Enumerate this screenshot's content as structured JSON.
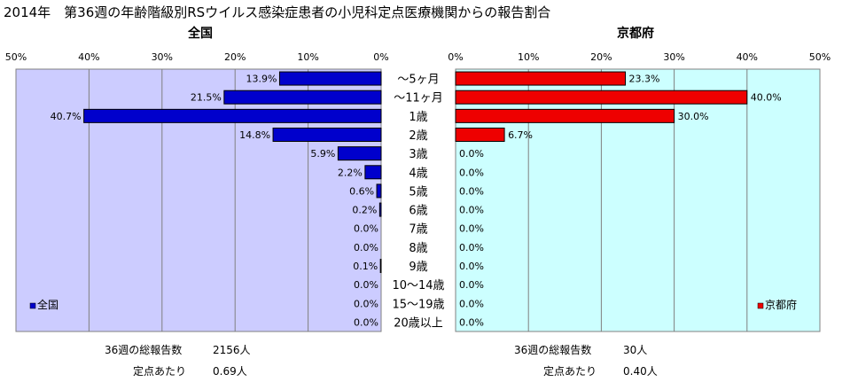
{
  "title": "2014年　第36週の年齢階級別RSウイルス感染症患者の小児科定点医療機関からの報告割合",
  "chart_data": {
    "type": "bar",
    "categories": [
      "〜5ヶ月",
      "〜11ヶ月",
      "1歳",
      "2歳",
      "3歳",
      "4歳",
      "5歳",
      "6歳",
      "7歳",
      "8歳",
      "9歳",
      "10〜14歳",
      "15〜19歳",
      "20歳以上"
    ],
    "xlim": [
      0,
      50
    ],
    "tick_labels": [
      "0%",
      "10%",
      "20%",
      "30%",
      "40%",
      "50%"
    ],
    "grid": true,
    "panels": [
      {
        "title": "全国",
        "direction": "reversed",
        "color": "#0000cc",
        "plot_bg": "#ccccff",
        "legend": "全国",
        "legend_position": "bottom-left",
        "values": [
          13.9,
          21.5,
          40.7,
          14.8,
          5.9,
          2.2,
          0.6,
          0.2,
          0.0,
          0.0,
          0.1,
          0.0,
          0.0,
          0.0
        ],
        "data_labels": [
          "13.9%",
          "21.5%",
          "40.7%",
          "14.8%",
          "5.9%",
          "2.2%",
          "0.6%",
          "0.2%",
          "0.0%",
          "0.0%",
          "0.1%",
          "0.0%",
          "0.0%",
          "0.0%"
        ]
      },
      {
        "title": "京都府",
        "direction": "normal",
        "color": "#ee0000",
        "plot_bg": "#ccffff",
        "legend": "京都府",
        "legend_position": "bottom-right",
        "values": [
          23.3,
          40.0,
          30.0,
          6.7,
          0.0,
          0.0,
          0.0,
          0.0,
          0.0,
          0.0,
          0.0,
          0.0,
          0.0,
          0.0
        ],
        "data_labels": [
          "23.3%",
          "40.0%",
          "30.0%",
          "6.7%",
          "0.0%",
          "0.0%",
          "0.0%",
          "0.0%",
          "0.0%",
          "0.0%",
          "0.0%",
          "0.0%",
          "0.0%",
          "0.0%"
        ]
      }
    ]
  },
  "footer": {
    "national": {
      "total_label": "36週の総報告数",
      "total_value": "2156人",
      "per_label": "定点あたり",
      "per_value": "0.69人"
    },
    "kyoto": {
      "total_label": "36週の総報告数",
      "total_value": "30人",
      "per_label": "定点あたり",
      "per_value": "0.40人"
    }
  }
}
